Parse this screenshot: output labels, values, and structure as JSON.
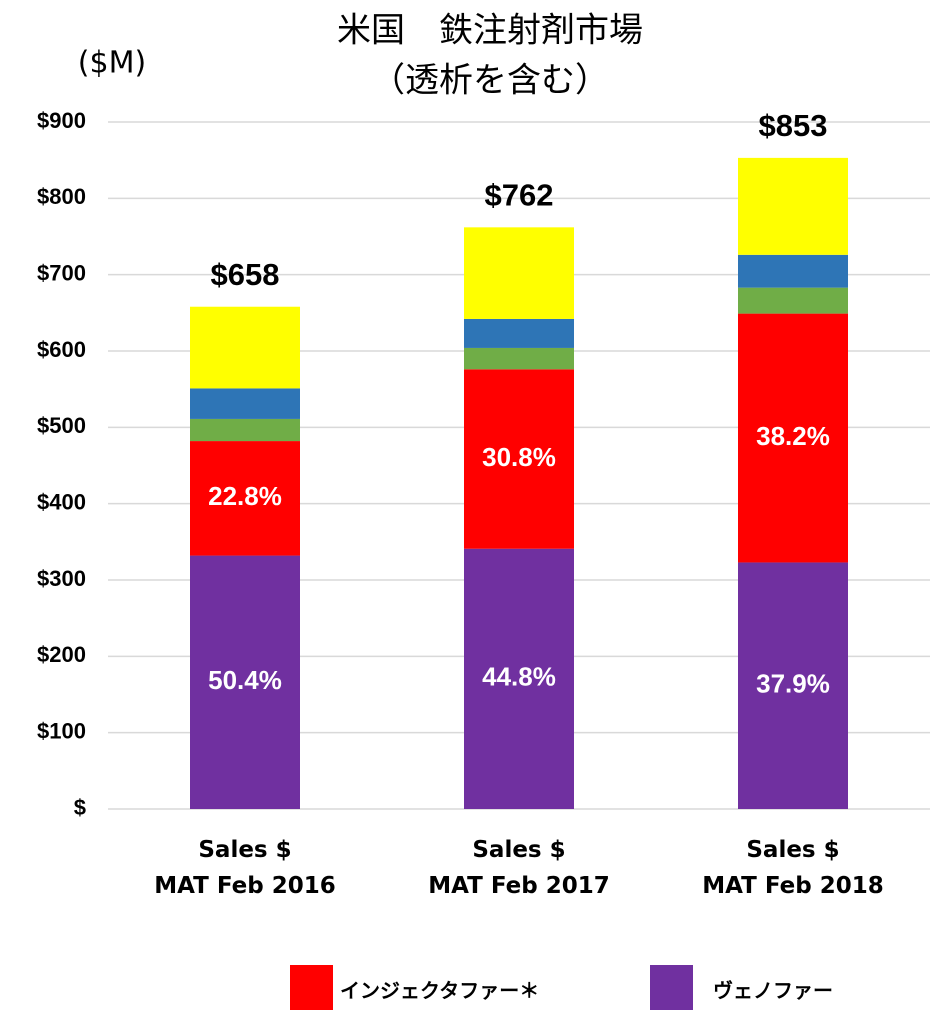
{
  "chart_data": {
    "type": "stacked_bar",
    "title": [
      "米国　鉄注射剤市場",
      "（透析を含む）"
    ],
    "y_label": "($M)",
    "categories": [
      "Sales $\nMAT  Feb 2016",
      "Sales $\nMAT  Feb 2017",
      "Sales $\nMAT  Feb 2018"
    ],
    "series": [
      {
        "name": "ヴェノファー",
        "color": "#7030a0",
        "values": [
          332,
          341,
          323
        ],
        "labels": [
          "50.4%",
          "44.8%",
          "37.9%"
        ]
      },
      {
        "name": "インジェクタファー＊",
        "color": "#ff0000",
        "values": [
          150,
          235,
          326
        ],
        "labels": [
          "22.8%",
          "30.8%",
          "38.2%"
        ]
      },
      {
        "name": null,
        "color": "#70ad47",
        "values": [
          29,
          28,
          34
        ]
      },
      {
        "name": null,
        "color": "#2e75b6",
        "values": [
          40,
          38,
          43
        ]
      },
      {
        "name": null,
        "color": "#ffff00",
        "values": [
          107,
          120,
          127
        ]
      }
    ],
    "totals": [
      658,
      762,
      853
    ],
    "total_labels": [
      "$658",
      "$762",
      "$853"
    ],
    "legend_order": [
      1,
      0
    ],
    "ylim": [
      0,
      900
    ],
    "yticks": [
      {
        "value": 0,
        "label": "$"
      },
      {
        "value": 100,
        "label": "$100"
      },
      {
        "value": 200,
        "label": "$200"
      },
      {
        "value": 300,
        "label": "$300"
      },
      {
        "value": 400,
        "label": "$400"
      },
      {
        "value": 500,
        "label": "$500"
      },
      {
        "value": 600,
        "label": "$600"
      },
      {
        "value": 700,
        "label": "$700"
      },
      {
        "value": 800,
        "label": "$800"
      },
      {
        "value": 900,
        "label": "$900"
      }
    ],
    "grid": true
  }
}
